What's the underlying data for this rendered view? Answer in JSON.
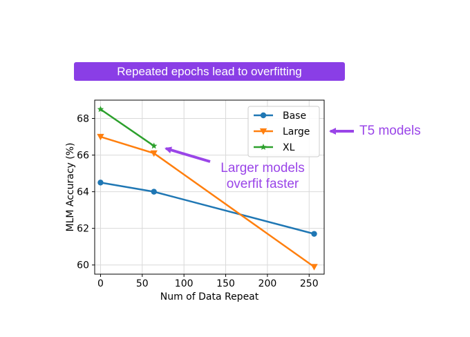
{
  "banner": {
    "text": "Repeated epochs lead to overfitting",
    "color": "#8a3ee6"
  },
  "annotations": {
    "t5": "T5 models",
    "larger_line1": "Larger models",
    "larger_line2": "overfit faster",
    "color": "#9a45e8"
  },
  "chart_data": {
    "type": "line",
    "title": "",
    "xlabel": "Num of Data Repeat",
    "ylabel": "MLM Accuracy (%)",
    "xlim": [
      -7,
      268
    ],
    "ylim": [
      59.5,
      69.0
    ],
    "xticks": [
      0,
      50,
      100,
      150,
      200,
      250
    ],
    "yticks": [
      60,
      62,
      64,
      66,
      68
    ],
    "grid": true,
    "legend_position": "top-right",
    "series": [
      {
        "name": "Base",
        "color": "#1f77b4",
        "marker": "circle",
        "x": [
          0,
          64,
          256
        ],
        "values": [
          64.5,
          64.0,
          61.7
        ]
      },
      {
        "name": "Large",
        "color": "#ff7f0e",
        "marker": "triangle-down",
        "x": [
          0,
          64,
          256
        ],
        "values": [
          67.0,
          66.1,
          59.9
        ]
      },
      {
        "name": "XL",
        "color": "#2ca02c",
        "marker": "star",
        "x": [
          0,
          64
        ],
        "values": [
          68.5,
          66.5
        ]
      }
    ]
  }
}
